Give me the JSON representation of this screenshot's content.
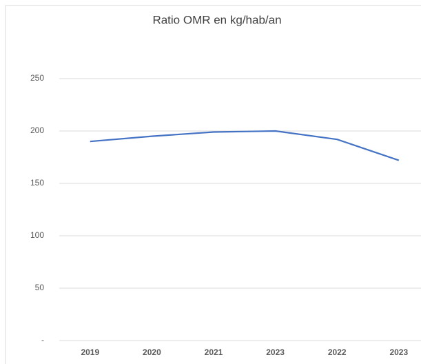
{
  "chart_data": {
    "type": "line",
    "title": "Ratio OMR en kg/hab/an",
    "categories": [
      "2019",
      "2020",
      "2021",
      "2023",
      "2022",
      "2023"
    ],
    "series": [
      {
        "name": "Ratio OMR",
        "color": "#4472c4",
        "values": [
          190,
          195,
          199,
          200,
          192,
          172
        ]
      }
    ],
    "ylim": [
      0,
      300
    ],
    "yticks": [
      {
        "value": 0,
        "label": "-"
      },
      50,
      100,
      150,
      200,
      250
    ],
    "grid": true
  }
}
